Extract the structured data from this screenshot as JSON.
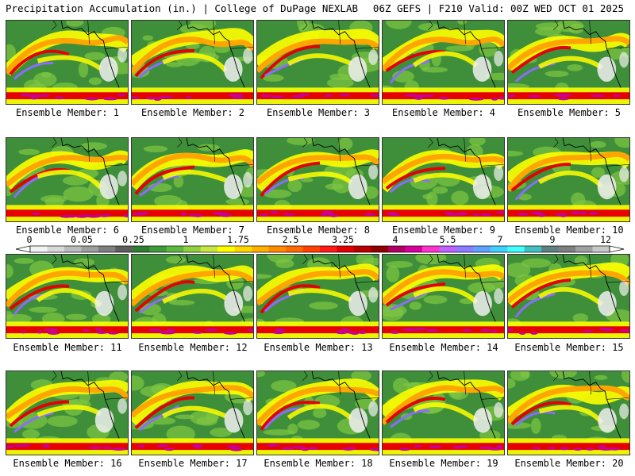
{
  "header": {
    "left_title": "Precipitation Accumulation (in.) | College of DuPage NEXLAB",
    "right_title": "06Z GEFS | F210 Valid: 00Z WED OCT 01 2025"
  },
  "panels": [
    {
      "label": "Ensemble Member: 1"
    },
    {
      "label": "Ensemble Member: 2"
    },
    {
      "label": "Ensemble Member: 3"
    },
    {
      "label": "Ensemble Member: 4"
    },
    {
      "label": "Ensemble Member: 5"
    },
    {
      "label": "Ensemble Member: 6"
    },
    {
      "label": "Ensemble Member: 7"
    },
    {
      "label": "Ensemble Member: 8"
    },
    {
      "label": "Ensemble Member: 9"
    },
    {
      "label": "Ensemble Member: 10"
    },
    {
      "label": "Ensemble Member: 11"
    },
    {
      "label": "Ensemble Member: 12"
    },
    {
      "label": "Ensemble Member: 13"
    },
    {
      "label": "Ensemble Member: 14"
    },
    {
      "label": "Ensemble Member: 15"
    },
    {
      "label": "Ensemble Member: 16"
    },
    {
      "label": "Ensemble Member: 17"
    },
    {
      "label": "Ensemble Member: 18"
    },
    {
      "label": "Ensemble Member: 19"
    },
    {
      "label": "Ensemble Member: 20"
    }
  ],
  "colorbar": {
    "labels": [
      "0",
      "0.05",
      "0.25",
      "1",
      "1.75",
      "2.5",
      "3.25",
      "4",
      "5.5",
      "7",
      "9",
      "12"
    ],
    "colors": [
      "#f2f2f2",
      "#d9d9d9",
      "#bcbcbc",
      "#9e9e9e",
      "#7f7f7f",
      "#5e5e5e",
      "#2e7d32",
      "#3f9a3a",
      "#5cb83e",
      "#8fd13f",
      "#c8e640",
      "#ffff00",
      "#ffd700",
      "#ffb000",
      "#ff8c00",
      "#ff6a00",
      "#ff4000",
      "#ff1a1a",
      "#e00000",
      "#b80000",
      "#900000",
      "#b00060",
      "#d8009c",
      "#ff33cc",
      "#c060ff",
      "#8c7cff",
      "#60a0ff",
      "#40d0ff",
      "#40ffff",
      "#40c0c0",
      "#608080",
      "#808080",
      "#a0a0a0",
      "#c8c8c8"
    ]
  },
  "map_colors": {
    "background": "#3f8f3a",
    "light_green": "#7fc642",
    "yellow": "#ffff00",
    "orange": "#ffa500",
    "red": "#e60000",
    "magenta": "#c8008c",
    "purple": "#8c6cff",
    "white": "#f0f0f0"
  }
}
